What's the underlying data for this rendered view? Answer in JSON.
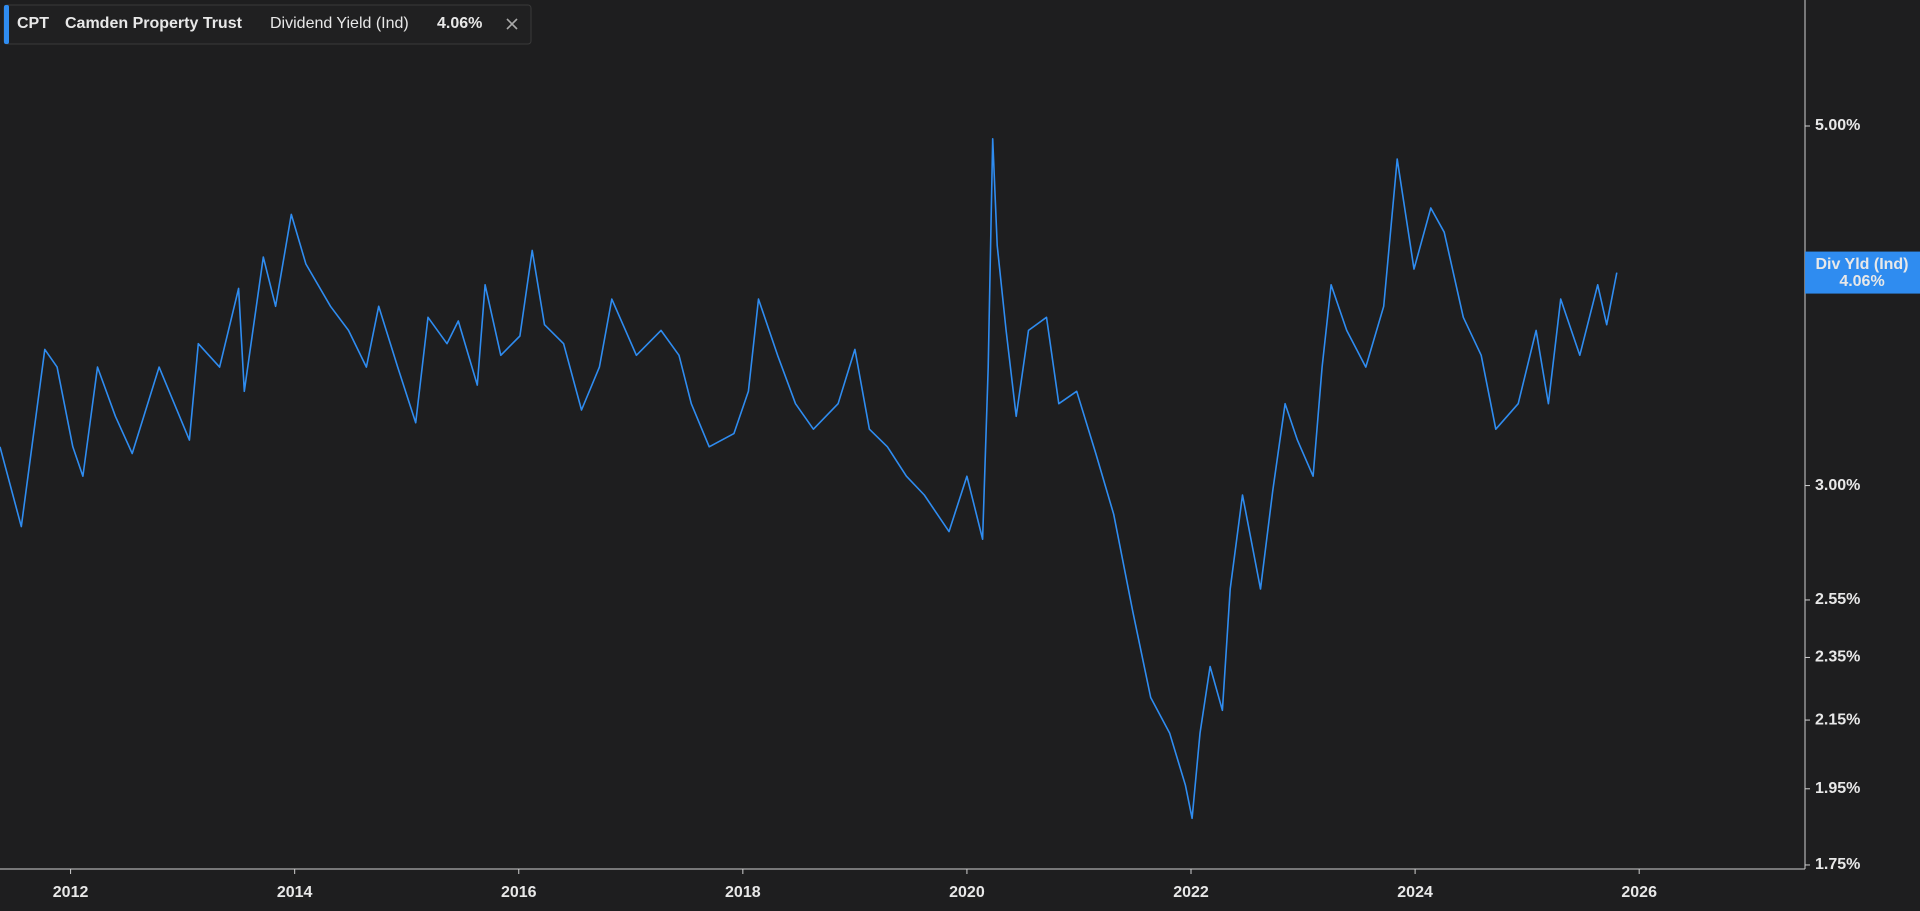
{
  "header": {
    "ticker": "CPT",
    "company": "Camden Property Trust",
    "metric": "Dividend Yield (Ind)",
    "value": "4.06%"
  },
  "price_tag": {
    "label": "Div Yld (Ind)",
    "value": "4.06%"
  },
  "chart_data": {
    "type": "line",
    "log_scale": true,
    "grid": false,
    "xlim": [
      2011.37,
      2027.48
    ],
    "xticks": [
      2012,
      2014,
      2016,
      2018,
      2020,
      2022,
      2024,
      2026
    ],
    "ylim": [
      1.74,
      5.98
    ],
    "yticks": [
      {
        "value": 1.75,
        "label": "1.75%"
      },
      {
        "value": 1.95,
        "label": "1.95%"
      },
      {
        "value": 2.15,
        "label": "2.15%"
      },
      {
        "value": 2.35,
        "label": "2.35%"
      },
      {
        "value": 2.55,
        "label": "2.55%"
      },
      {
        "value": 3,
        "label": "3.00%"
      },
      {
        "value": 5,
        "label": "5.00%"
      }
    ],
    "series": [
      {
        "color": "#2f8cf0",
        "x": [
          2011.37,
          2011.56,
          2011.77,
          2011.88,
          2012.02,
          2012.11,
          2012.24,
          2012.4,
          2012.55,
          2012.79,
          2013.06,
          2013.14,
          2013.33,
          2013.5,
          2013.55,
          2013.72,
          2013.83,
          2013.97,
          2014.1,
          2014.32,
          2014.48,
          2014.64,
          2014.75,
          2014.92,
          2015.08,
          2015.19,
          2015.36,
          2015.46,
          2015.63,
          2015.7,
          2015.84,
          2016.01,
          2016.12,
          2016.23,
          2016.4,
          2016.56,
          2016.72,
          2016.83,
          2017.05,
          2017.27,
          2017.43,
          2017.54,
          2017.7,
          2017.92,
          2018.05,
          2018.14,
          2018.31,
          2018.47,
          2018.63,
          2018.85,
          2019.0,
          2019.13,
          2019.29,
          2019.46,
          2019.62,
          2019.84,
          2020.0,
          2020.14,
          2020.19,
          2020.23,
          2020.27,
          2020.35,
          2020.44,
          2020.55,
          2020.71,
          2020.82,
          2020.98,
          2021.15,
          2021.31,
          2021.48,
          2021.64,
          2021.81,
          2021.95,
          2022.01,
          2022.08,
          2022.17,
          2022.28,
          2022.35,
          2022.46,
          2022.62,
          2022.73,
          2022.84,
          2022.95,
          2023.09,
          2023.17,
          2023.25,
          2023.39,
          2023.56,
          2023.72,
          2023.84,
          2023.99,
          2024.14,
          2024.26,
          2024.43,
          2024.59,
          2024.72,
          2024.92,
          2025.08,
          2025.19,
          2025.3,
          2025.47,
          2025.63,
          2025.71,
          2025.8
        ],
        "values": [
          3.17,
          2.83,
          3.64,
          3.55,
          3.17,
          3.04,
          3.55,
          3.31,
          3.14,
          3.55,
          3.2,
          3.67,
          3.55,
          3.97,
          3.43,
          4.15,
          3.87,
          4.41,
          4.11,
          3.87,
          3.74,
          3.55,
          3.87,
          3.55,
          3.28,
          3.81,
          3.67,
          3.79,
          3.46,
          3.99,
          3.61,
          3.71,
          4.19,
          3.77,
          3.67,
          3.34,
          3.55,
          3.91,
          3.61,
          3.74,
          3.61,
          3.37,
          3.17,
          3.23,
          3.43,
          3.91,
          3.61,
          3.37,
          3.25,
          3.37,
          3.64,
          3.25,
          3.17,
          3.04,
          2.96,
          2.81,
          3.04,
          2.78,
          3.55,
          4.91,
          4.22,
          3.74,
          3.31,
          3.74,
          3.81,
          3.37,
          3.43,
          3.14,
          2.88,
          2.51,
          2.22,
          2.11,
          1.96,
          1.87,
          2.11,
          2.32,
          2.18,
          2.59,
          2.96,
          2.59,
          2.98,
          3.37,
          3.2,
          3.04,
          3.55,
          3.99,
          3.74,
          3.55,
          3.87,
          4.77,
          4.08,
          4.45,
          4.3,
          3.81,
          3.61,
          3.25,
          3.37,
          3.74,
          3.37,
          3.91,
          3.61,
          3.99,
          3.77,
          4.06
        ]
      }
    ]
  }
}
